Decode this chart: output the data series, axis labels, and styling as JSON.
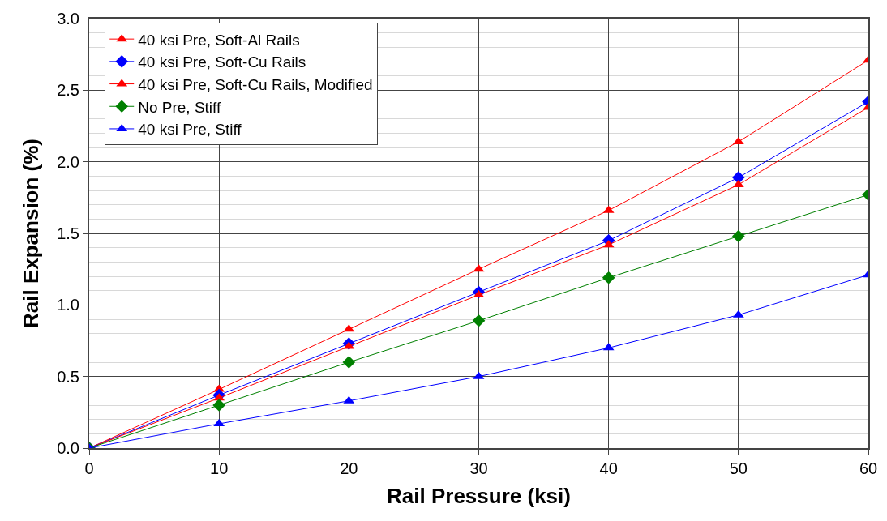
{
  "chart_data": {
    "type": "line",
    "xlabel": "Rail Pressure (ksi)",
    "ylabel": "Rail Expansion (%)",
    "x": [
      0,
      10,
      20,
      30,
      40,
      50,
      60
    ],
    "series": [
      {
        "name": "40 ksi Pre, Soft-Al Rails",
        "color": "#ff0000",
        "marker": "triangle",
        "values": [
          0,
          0.41,
          0.83,
          1.25,
          1.66,
          2.14,
          2.71
        ]
      },
      {
        "name": "40 ksi Pre, Soft-Cu Rails",
        "color": "#0000ff",
        "marker": "diamond",
        "values": [
          0,
          0.37,
          0.73,
          1.09,
          1.45,
          1.89,
          2.42
        ]
      },
      {
        "name": "40 ksi Pre, Soft-Cu Rails, Modified",
        "color": "#ff0000",
        "marker": "triangle",
        "values": [
          0,
          0.35,
          0.71,
          1.07,
          1.42,
          1.84,
          2.38
        ]
      },
      {
        "name": "No Pre, Stiff",
        "color": "#008000",
        "marker": "diamond",
        "values": [
          0,
          0.3,
          0.6,
          0.89,
          1.19,
          1.48,
          1.77
        ]
      },
      {
        "name": "40 ksi Pre, Stiff",
        "color": "#0000ff",
        "marker": "triangle",
        "values": [
          0,
          0.17,
          0.33,
          0.5,
          0.7,
          0.93,
          1.21
        ]
      }
    ],
    "xlim": [
      0,
      60
    ],
    "xticks": [
      0,
      10,
      20,
      30,
      40,
      50,
      60
    ],
    "ylim": [
      0,
      3.0
    ],
    "yticks": [
      {
        "value": 0,
        "label": "0.0"
      },
      {
        "value": 0.5,
        "label": "0.5"
      },
      {
        "value": 1.0,
        "label": "1.0"
      },
      {
        "value": 1.5,
        "label": "1.5"
      },
      {
        "value": 2.0,
        "label": "2.0"
      },
      {
        "value": 2.5,
        "label": "2.5"
      },
      {
        "value": 3.0,
        "label": "3.0"
      }
    ],
    "grid": true,
    "legend": "top left",
    "line_style": "solid"
  }
}
